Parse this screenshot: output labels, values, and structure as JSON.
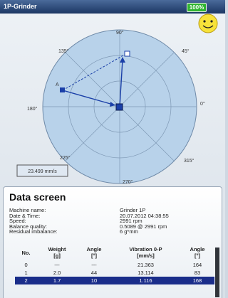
{
  "title_bar": {
    "title": "1P-Grinder",
    "battery": "100%"
  },
  "polar_plot": {
    "angle_labels": [
      "90°",
      "45°",
      "0°",
      "315°",
      "270°",
      "225°",
      "180°",
      "135°"
    ],
    "point_label": "A",
    "readout": "23.499 mm/s"
  },
  "data_screen": {
    "title": "Data screen",
    "info": [
      {
        "label": "Machine name:",
        "value": "Grinder 1P"
      },
      {
        "label": "Date & Time:",
        "value": "20.07.2012 04:38:55"
      },
      {
        "label": "Speed:",
        "value": "2991 rpm"
      },
      {
        "label": "Balance quality:",
        "value": "0.5089 @ 2991 rpm"
      },
      {
        "label": "Residual imbalance:",
        "value": "6 g*mm"
      }
    ],
    "table": {
      "headers": [
        [
          "No."
        ],
        [
          "Weight",
          "[g]"
        ],
        [
          "Angle",
          "[°]"
        ],
        [
          "Vibration 0-P",
          "[mm/s]"
        ],
        [
          "Angle",
          "[°]"
        ]
      ],
      "rows": [
        [
          "0",
          "---",
          "---",
          "21.363",
          "164"
        ],
        [
          "1",
          "2.0",
          "44",
          "13.114",
          "83"
        ],
        [
          "2",
          "1.7",
          "10",
          "1.116",
          "168"
        ]
      ]
    }
  }
}
